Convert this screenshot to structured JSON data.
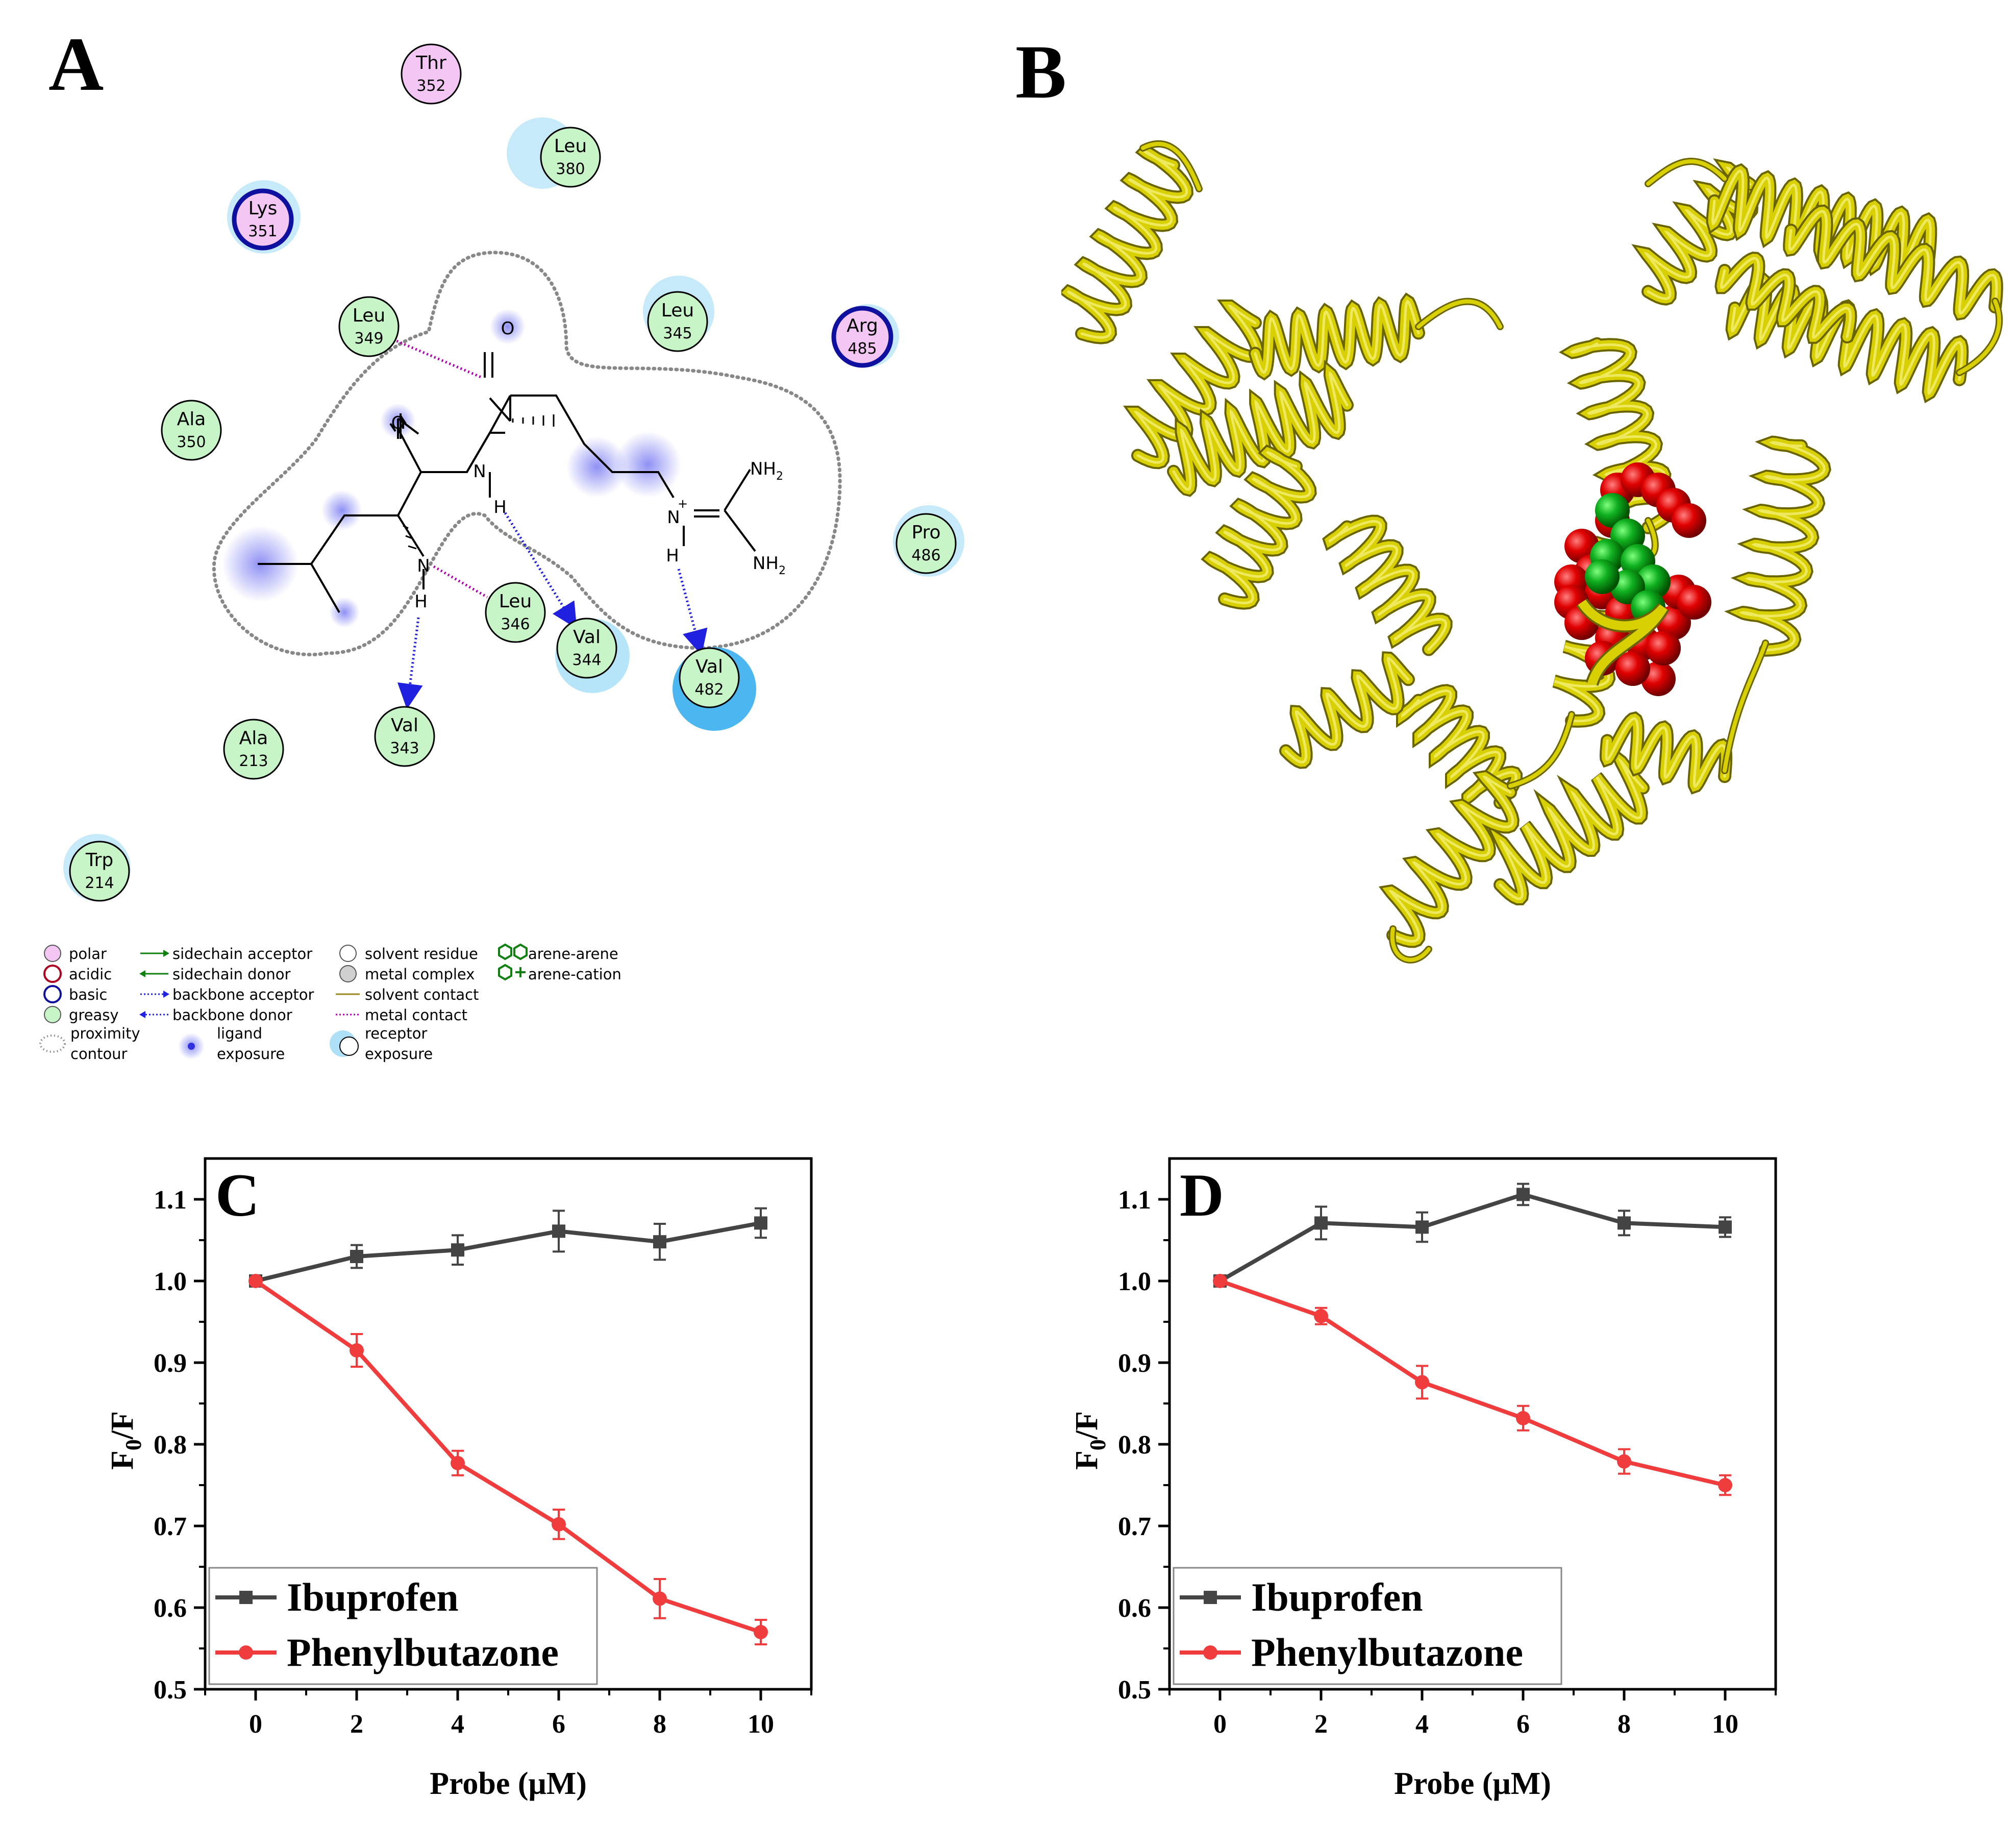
{
  "panels": {
    "a": {
      "letter": "A",
      "residues": [
        {
          "id": "thr352",
          "name": "Thr",
          "num": "352",
          "kind": "polar"
        },
        {
          "id": "leu380",
          "name": "Leu",
          "num": "380",
          "kind": "greasy"
        },
        {
          "id": "lys351",
          "name": "Lys",
          "num": "351",
          "kind": "basic"
        },
        {
          "id": "leu349",
          "name": "Leu",
          "num": "349",
          "kind": "greasy"
        },
        {
          "id": "leu345",
          "name": "Leu",
          "num": "345",
          "kind": "greasy"
        },
        {
          "id": "arg485",
          "name": "Arg",
          "num": "485",
          "kind": "basic"
        },
        {
          "id": "ala350",
          "name": "Ala",
          "num": "350",
          "kind": "greasy"
        },
        {
          "id": "pro486",
          "name": "Pro",
          "num": "486",
          "kind": "greasy"
        },
        {
          "id": "leu346",
          "name": "Leu",
          "num": "346",
          "kind": "greasy"
        },
        {
          "id": "val344",
          "name": "Val",
          "num": "344",
          "kind": "greasy"
        },
        {
          "id": "val482",
          "name": "Val",
          "num": "482",
          "kind": "greasy"
        },
        {
          "id": "val343",
          "name": "Val",
          "num": "343",
          "kind": "greasy"
        },
        {
          "id": "ala213",
          "name": "Ala",
          "num": "213",
          "kind": "greasy"
        },
        {
          "id": "trp214",
          "name": "Trp",
          "num": "214",
          "kind": "greasy"
        }
      ],
      "atoms": {
        "o1": "O",
        "o2": "O",
        "n_amide": "N",
        "h_amide": "H",
        "n_amine": "N",
        "h_amine": "H",
        "n_plus": "N",
        "plus": "+",
        "h_plus": "H",
        "nh2_top": "NH",
        "nh2_bot": "NH",
        "sub2": "2"
      },
      "legend": {
        "col1": [
          "polar",
          "acidic",
          "basic",
          "greasy",
          "proximity",
          "contour"
        ],
        "col2": [
          "sidechain acceptor",
          "sidechain donor",
          "backbone acceptor",
          "backbone donor",
          "ligand",
          "exposure"
        ],
        "col3": [
          "solvent residue",
          "metal complex",
          "solvent contact",
          "metal contact",
          "receptor",
          "exposure"
        ],
        "col4": [
          "arene-arene",
          "arene-cation"
        ]
      }
    },
    "b": {
      "letter": "B"
    }
  },
  "colors": {
    "polar": "#f4c6f4",
    "greasy": "#c8f5c8",
    "basic_ring": "#1010a0",
    "ibuprofen": "#444444",
    "phenylbutazone": "#f03c3c",
    "protein": "#d8d000",
    "ligand_red": "#e00000",
    "ligand_green": "#10b020"
  },
  "chart_data": [
    {
      "type": "line",
      "letter": "C",
      "xlabel": "Probe (μM)",
      "ylabel_main": "F",
      "ylabel_sub": "0",
      "ylabel_tail": "/F",
      "x": [
        0,
        2,
        4,
        6,
        8,
        10
      ],
      "xlim": [
        -1,
        11
      ],
      "ylim": [
        0.5,
        1.15
      ],
      "xticks": [
        "0",
        "2",
        "4",
        "6",
        "8",
        "10"
      ],
      "yticks": [
        "0.5",
        "0.6",
        "0.7",
        "0.8",
        "0.9",
        "1.0",
        "1.1"
      ],
      "series": [
        {
          "name": "Ibuprofen",
          "values": [
            1.0,
            1.03,
            1.038,
            1.061,
            1.048,
            1.071
          ],
          "errors": [
            0,
            0.014,
            0.018,
            0.025,
            0.022,
            0.018
          ]
        },
        {
          "name": "Phenylbutazone",
          "values": [
            1.0,
            0.915,
            0.777,
            0.702,
            0.611,
            0.57
          ],
          "errors": [
            0,
            0.02,
            0.015,
            0.018,
            0.024,
            0.015
          ]
        }
      ]
    },
    {
      "type": "line",
      "letter": "D",
      "xlabel": "Probe (μM)",
      "ylabel_main": "F",
      "ylabel_sub": "0",
      "ylabel_tail": "/F",
      "x": [
        0,
        2,
        4,
        6,
        8,
        10
      ],
      "xlim": [
        -1,
        11
      ],
      "ylim": [
        0.5,
        1.15
      ],
      "xticks": [
        "0",
        "2",
        "4",
        "6",
        "8",
        "10"
      ],
      "yticks": [
        "0.5",
        "0.6",
        "0.7",
        "0.8",
        "0.9",
        "1.0",
        "1.1"
      ],
      "series": [
        {
          "name": "Ibuprofen",
          "values": [
            1.0,
            1.071,
            1.066,
            1.106,
            1.071,
            1.066
          ],
          "errors": [
            0,
            0.02,
            0.018,
            0.013,
            0.015,
            0.012
          ]
        },
        {
          "name": "Phenylbutazone",
          "values": [
            1.0,
            0.957,
            0.876,
            0.832,
            0.779,
            0.75
          ],
          "errors": [
            0,
            0.01,
            0.02,
            0.015,
            0.015,
            0.012
          ]
        }
      ]
    }
  ]
}
